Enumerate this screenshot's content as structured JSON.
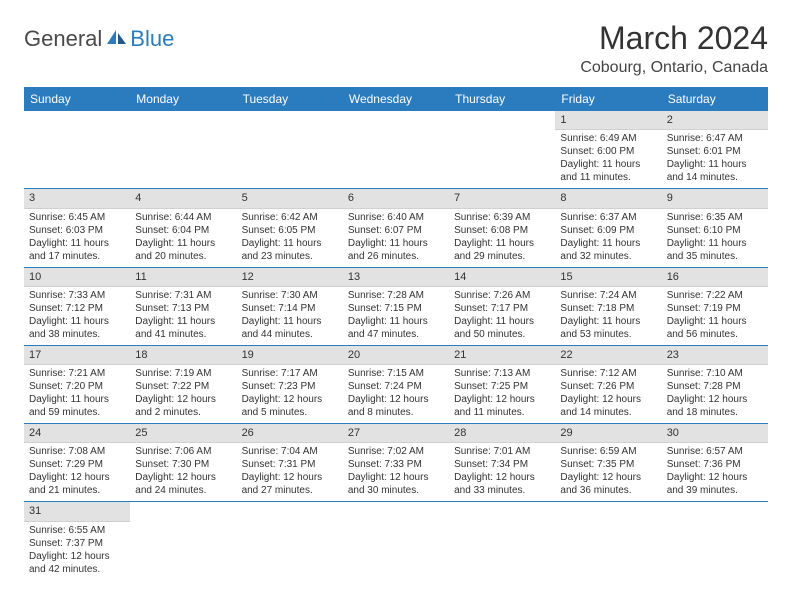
{
  "logo": {
    "part1": "General",
    "part2": "Blue"
  },
  "title": "March 2024",
  "location": "Cobourg, Ontario, Canada",
  "colors": {
    "header_bg": "#2b7bbf",
    "header_text": "#ffffff",
    "daynum_bg": "#e2e2e2",
    "row_divider": "#2b7bbf",
    "text": "#333333",
    "logo_gray": "#4a4a4a",
    "logo_blue": "#2b7bbf",
    "page_bg": "#ffffff"
  },
  "weekdays": [
    "Sunday",
    "Monday",
    "Tuesday",
    "Wednesday",
    "Thursday",
    "Friday",
    "Saturday"
  ],
  "weeks": [
    [
      null,
      null,
      null,
      null,
      null,
      {
        "n": "1",
        "sr": "6:49 AM",
        "ss": "6:00 PM",
        "dl": "11 hours and 11 minutes."
      },
      {
        "n": "2",
        "sr": "6:47 AM",
        "ss": "6:01 PM",
        "dl": "11 hours and 14 minutes."
      }
    ],
    [
      {
        "n": "3",
        "sr": "6:45 AM",
        "ss": "6:03 PM",
        "dl": "11 hours and 17 minutes."
      },
      {
        "n": "4",
        "sr": "6:44 AM",
        "ss": "6:04 PM",
        "dl": "11 hours and 20 minutes."
      },
      {
        "n": "5",
        "sr": "6:42 AM",
        "ss": "6:05 PM",
        "dl": "11 hours and 23 minutes."
      },
      {
        "n": "6",
        "sr": "6:40 AM",
        "ss": "6:07 PM",
        "dl": "11 hours and 26 minutes."
      },
      {
        "n": "7",
        "sr": "6:39 AM",
        "ss": "6:08 PM",
        "dl": "11 hours and 29 minutes."
      },
      {
        "n": "8",
        "sr": "6:37 AM",
        "ss": "6:09 PM",
        "dl": "11 hours and 32 minutes."
      },
      {
        "n": "9",
        "sr": "6:35 AM",
        "ss": "6:10 PM",
        "dl": "11 hours and 35 minutes."
      }
    ],
    [
      {
        "n": "10",
        "sr": "7:33 AM",
        "ss": "7:12 PM",
        "dl": "11 hours and 38 minutes."
      },
      {
        "n": "11",
        "sr": "7:31 AM",
        "ss": "7:13 PM",
        "dl": "11 hours and 41 minutes."
      },
      {
        "n": "12",
        "sr": "7:30 AM",
        "ss": "7:14 PM",
        "dl": "11 hours and 44 minutes."
      },
      {
        "n": "13",
        "sr": "7:28 AM",
        "ss": "7:15 PM",
        "dl": "11 hours and 47 minutes."
      },
      {
        "n": "14",
        "sr": "7:26 AM",
        "ss": "7:17 PM",
        "dl": "11 hours and 50 minutes."
      },
      {
        "n": "15",
        "sr": "7:24 AM",
        "ss": "7:18 PM",
        "dl": "11 hours and 53 minutes."
      },
      {
        "n": "16",
        "sr": "7:22 AM",
        "ss": "7:19 PM",
        "dl": "11 hours and 56 minutes."
      }
    ],
    [
      {
        "n": "17",
        "sr": "7:21 AM",
        "ss": "7:20 PM",
        "dl": "11 hours and 59 minutes."
      },
      {
        "n": "18",
        "sr": "7:19 AM",
        "ss": "7:22 PM",
        "dl": "12 hours and 2 minutes."
      },
      {
        "n": "19",
        "sr": "7:17 AM",
        "ss": "7:23 PM",
        "dl": "12 hours and 5 minutes."
      },
      {
        "n": "20",
        "sr": "7:15 AM",
        "ss": "7:24 PM",
        "dl": "12 hours and 8 minutes."
      },
      {
        "n": "21",
        "sr": "7:13 AM",
        "ss": "7:25 PM",
        "dl": "12 hours and 11 minutes."
      },
      {
        "n": "22",
        "sr": "7:12 AM",
        "ss": "7:26 PM",
        "dl": "12 hours and 14 minutes."
      },
      {
        "n": "23",
        "sr": "7:10 AM",
        "ss": "7:28 PM",
        "dl": "12 hours and 18 minutes."
      }
    ],
    [
      {
        "n": "24",
        "sr": "7:08 AM",
        "ss": "7:29 PM",
        "dl": "12 hours and 21 minutes."
      },
      {
        "n": "25",
        "sr": "7:06 AM",
        "ss": "7:30 PM",
        "dl": "12 hours and 24 minutes."
      },
      {
        "n": "26",
        "sr": "7:04 AM",
        "ss": "7:31 PM",
        "dl": "12 hours and 27 minutes."
      },
      {
        "n": "27",
        "sr": "7:02 AM",
        "ss": "7:33 PM",
        "dl": "12 hours and 30 minutes."
      },
      {
        "n": "28",
        "sr": "7:01 AM",
        "ss": "7:34 PM",
        "dl": "12 hours and 33 minutes."
      },
      {
        "n": "29",
        "sr": "6:59 AM",
        "ss": "7:35 PM",
        "dl": "12 hours and 36 minutes."
      },
      {
        "n": "30",
        "sr": "6:57 AM",
        "ss": "7:36 PM",
        "dl": "12 hours and 39 minutes."
      }
    ],
    [
      {
        "n": "31",
        "sr": "6:55 AM",
        "ss": "7:37 PM",
        "dl": "12 hours and 42 minutes."
      },
      null,
      null,
      null,
      null,
      null,
      null
    ]
  ],
  "labels": {
    "sunrise": "Sunrise:",
    "sunset": "Sunset:",
    "daylight": "Daylight:"
  }
}
